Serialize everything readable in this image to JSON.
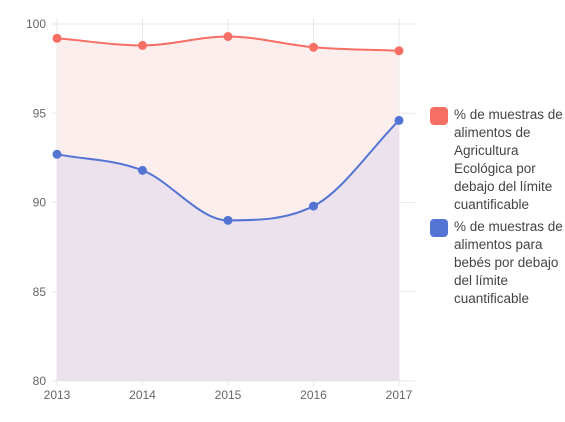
{
  "chart_data": {
    "type": "area",
    "x": [
      2013,
      2014,
      2015,
      2016,
      2017
    ],
    "x_tick_labels": [
      "2013",
      "2014",
      "2015",
      "2016",
      "2017"
    ],
    "y_tick_labels": [
      "80",
      "85",
      "90",
      "95",
      "100"
    ],
    "ylim": [
      80,
      100
    ],
    "grid": true,
    "legend_position": "right",
    "series": [
      {
        "name": "% de muestras de alimentos de Agricultura Ecológica por debajo del límite cuantificable",
        "values": [
          99.2,
          98.8,
          99.3,
          98.7,
          98.5
        ],
        "color": "#f76e64",
        "fill": "#fdeeee"
      },
      {
        "name": "% de muestras de alimentos para bebés por debajo del límite cuantificable",
        "values": [
          92.7,
          91.8,
          89.0,
          89.8,
          94.6
        ],
        "color": "#5474d4",
        "fill": "#ece2ee"
      }
    ]
  }
}
